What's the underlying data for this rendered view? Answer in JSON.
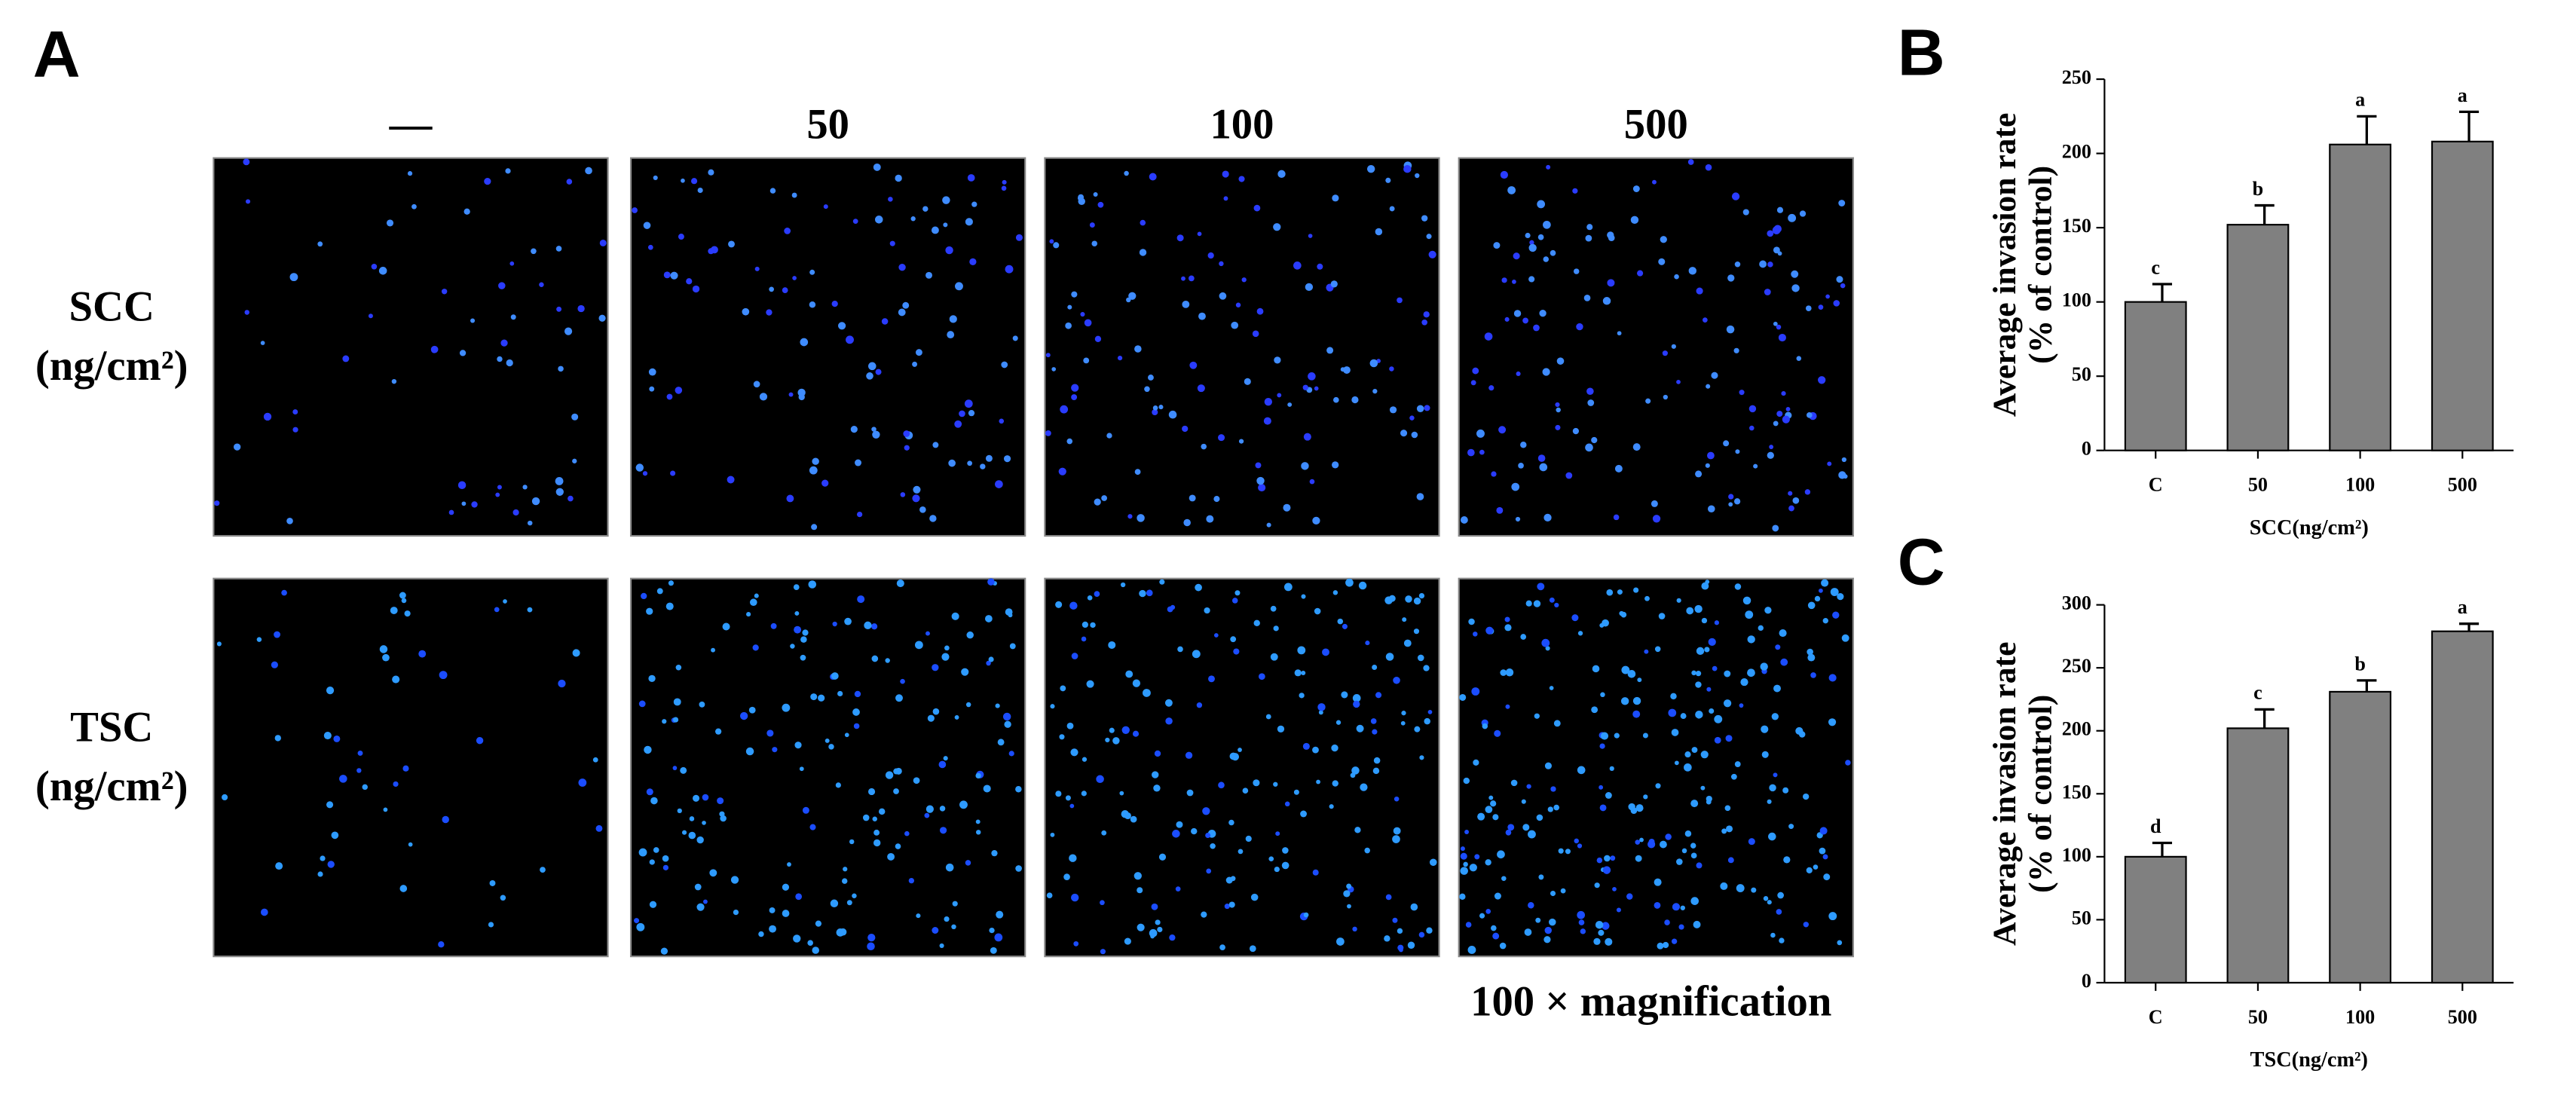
{
  "panel_labels": [
    "A",
    "B",
    "C"
  ],
  "micrographs": {
    "column_labels": [
      "—",
      "50",
      "100",
      "500"
    ],
    "row_labels": [
      {
        "name": "SCC",
        "unit": "(ng/cm²)"
      },
      {
        "name": "TSC",
        "unit": "(ng/cm²)"
      }
    ],
    "note": "100 × magnification"
  },
  "chart_data": [
    {
      "type": "bar",
      "ylabel": [
        "Average invasion rate",
        "(% of control)"
      ],
      "xlabel": "SCC(ng/cm²)",
      "categories": [
        "C",
        "50",
        "100",
        "500"
      ],
      "values": [
        100,
        152,
        206,
        208
      ],
      "errors": [
        12,
        13,
        19,
        20
      ],
      "annotations": [
        "c",
        "b",
        "a",
        "a"
      ],
      "color": "#808080",
      "ylim": [
        0,
        250
      ],
      "yticks": [
        0,
        50,
        100,
        150,
        200,
        250
      ]
    },
    {
      "type": "bar",
      "ylabel": [
        "Average invasion rate",
        "(% of control)"
      ],
      "xlabel": "TSC(ng/cm²)",
      "categories": [
        "C",
        "50",
        "100",
        "500"
      ],
      "values": [
        100,
        202,
        231,
        279
      ],
      "errors": [
        11,
        15,
        9,
        6
      ],
      "annotations": [
        "d",
        "c",
        "b",
        "a"
      ],
      "color": "#808080",
      "ylim": [
        0,
        300
      ],
      "yticks": [
        0,
        50,
        100,
        150,
        200,
        250,
        300
      ]
    }
  ]
}
